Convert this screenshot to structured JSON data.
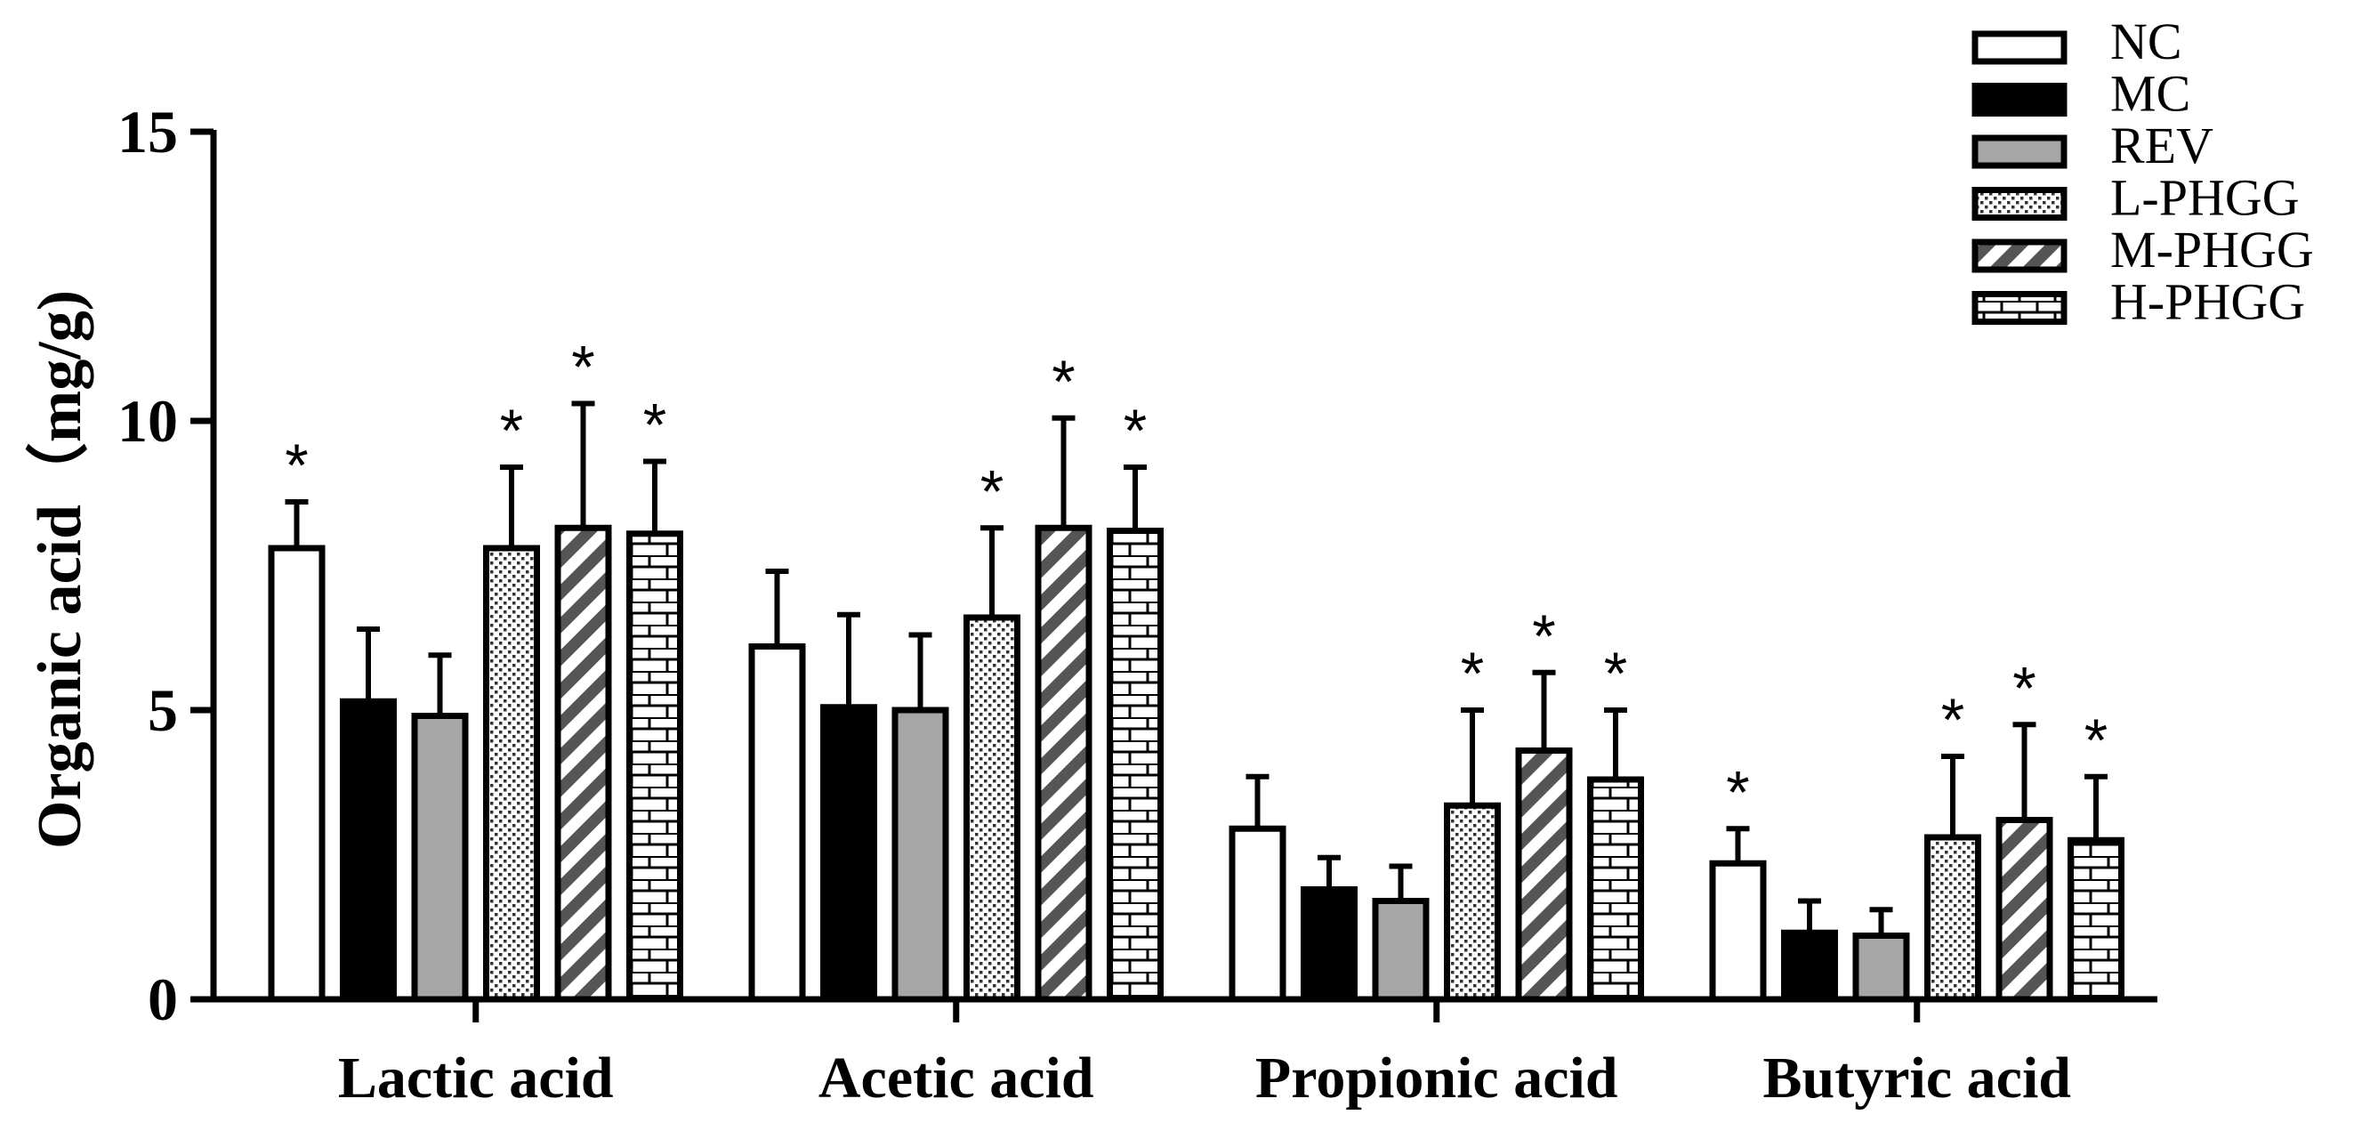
{
  "chart_data": {
    "type": "bar",
    "title": "",
    "xlabel": "",
    "ylabel": "Organic acid（mg/g)",
    "ylim": [
      0,
      15
    ],
    "yticks": [
      0,
      5,
      10,
      15
    ],
    "grid": false,
    "legend_position": "top-right",
    "categories": [
      "Lactic acid",
      "Acetic acid",
      "Propionic acid",
      "Butyric acid"
    ],
    "significance_marker": "*",
    "series": [
      {
        "name": "NC",
        "fill": "white",
        "values": [
          7.8,
          6.1,
          2.95,
          2.35
        ],
        "errors": [
          0.8,
          1.3,
          0.9,
          0.6
        ],
        "significant": [
          true,
          false,
          false,
          true
        ]
      },
      {
        "name": "MC",
        "fill": "black",
        "values": [
          5.15,
          5.05,
          1.9,
          1.15
        ],
        "errors": [
          1.25,
          1.6,
          0.55,
          0.55
        ],
        "significant": [
          false,
          false,
          false,
          false
        ]
      },
      {
        "name": "REV",
        "fill": "gray",
        "values": [
          4.9,
          5.0,
          1.7,
          1.1
        ],
        "errors": [
          1.05,
          1.3,
          0.6,
          0.45
        ],
        "significant": [
          false,
          false,
          false,
          false
        ]
      },
      {
        "name": "L-PHGG",
        "fill": "dots",
        "values": [
          7.8,
          6.6,
          3.35,
          2.8
        ],
        "errors": [
          1.4,
          1.55,
          1.65,
          1.4
        ],
        "significant": [
          true,
          true,
          true,
          true
        ]
      },
      {
        "name": "M-PHGG",
        "fill": "diagonal",
        "values": [
          8.15,
          8.15,
          4.3,
          3.1
        ],
        "errors": [
          2.15,
          1.9,
          1.35,
          1.65
        ],
        "significant": [
          true,
          true,
          true,
          true
        ]
      },
      {
        "name": "H-PHGG",
        "fill": "brick",
        "values": [
          8.05,
          8.1,
          3.8,
          2.75
        ],
        "errors": [
          1.25,
          1.1,
          1.2,
          1.1
        ],
        "significant": [
          true,
          true,
          true,
          true
        ]
      }
    ]
  }
}
